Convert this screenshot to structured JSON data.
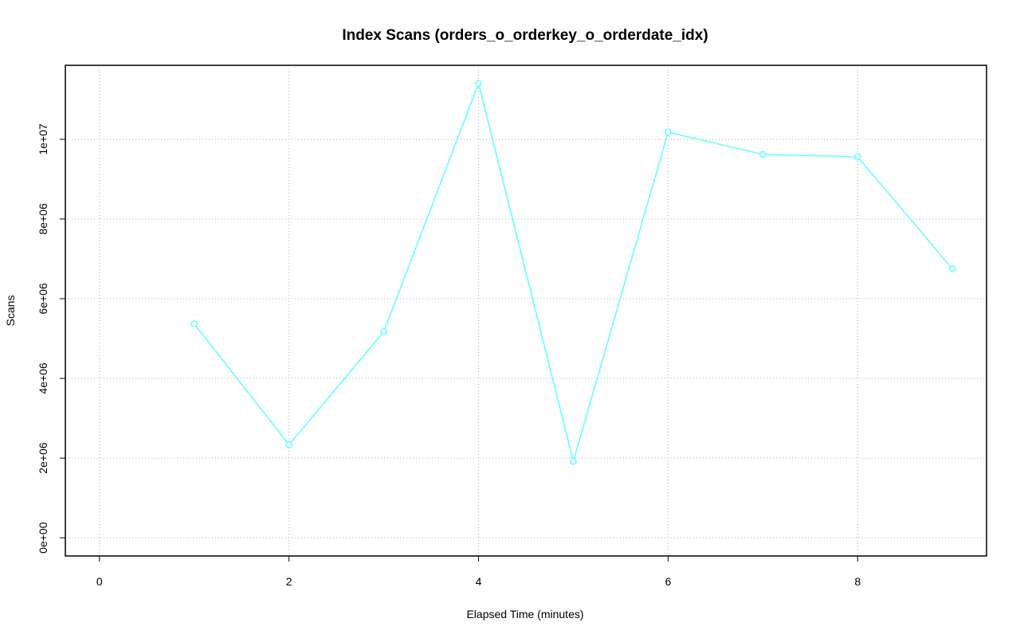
{
  "chart_data": {
    "type": "line",
    "title": "Index Scans (orders_o_orderkey_o_orderdate_idx)",
    "x_label": "Elapsed Time (minutes)",
    "y_label": "Scans",
    "x": [
      1,
      2,
      3,
      4,
      5,
      6,
      7,
      8,
      9
    ],
    "series": [
      {
        "name": "Scans",
        "color": "#66ffff",
        "values": [
          5370000,
          2335000,
          5170000,
          11400000,
          1920000,
          10180000,
          9620000,
          9560000,
          6750000
        ]
      }
    ],
    "xlim": [
      -0.36,
      9.36
    ],
    "xticks": [
      0,
      2,
      4,
      6,
      8
    ],
    "ylim": [
      -456000,
      11856000
    ],
    "yticks": [
      {
        "value": 0,
        "label": "0e+00"
      },
      {
        "value": 2000000,
        "label": "2e+06"
      },
      {
        "value": 4000000,
        "label": "4e+06"
      },
      {
        "value": 6000000,
        "label": "6e+06"
      },
      {
        "value": 8000000,
        "label": "8e+06"
      },
      {
        "value": 10000000,
        "label": "1e+07"
      }
    ],
    "grid": true
  }
}
